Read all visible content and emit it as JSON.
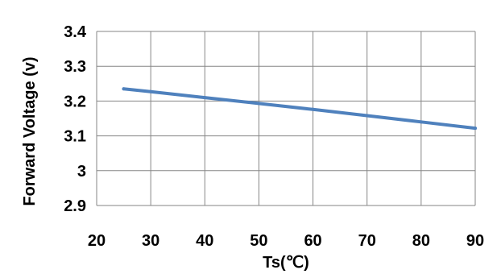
{
  "chart_data": {
    "type": "line",
    "xlabel": "Ts(℃)",
    "ylabel": "Forward Voltage (v)",
    "xlim": [
      20,
      90
    ],
    "ylim": [
      2.9,
      3.4
    ],
    "x_ticks": [
      "20",
      "30",
      "40",
      "50",
      "60",
      "70",
      "80",
      "90"
    ],
    "y_ticks": [
      "2.9",
      "3",
      "3.1",
      "3.2",
      "3.3",
      "3.4"
    ],
    "grid": true,
    "series": [
      {
        "color": "#4f81bd",
        "x": [
          25,
          30,
          40,
          50,
          60,
          70,
          80,
          90
        ],
        "y": [
          3.235,
          3.227,
          3.21,
          3.193,
          3.176,
          3.158,
          3.14,
          3.122
        ]
      }
    ]
  }
}
